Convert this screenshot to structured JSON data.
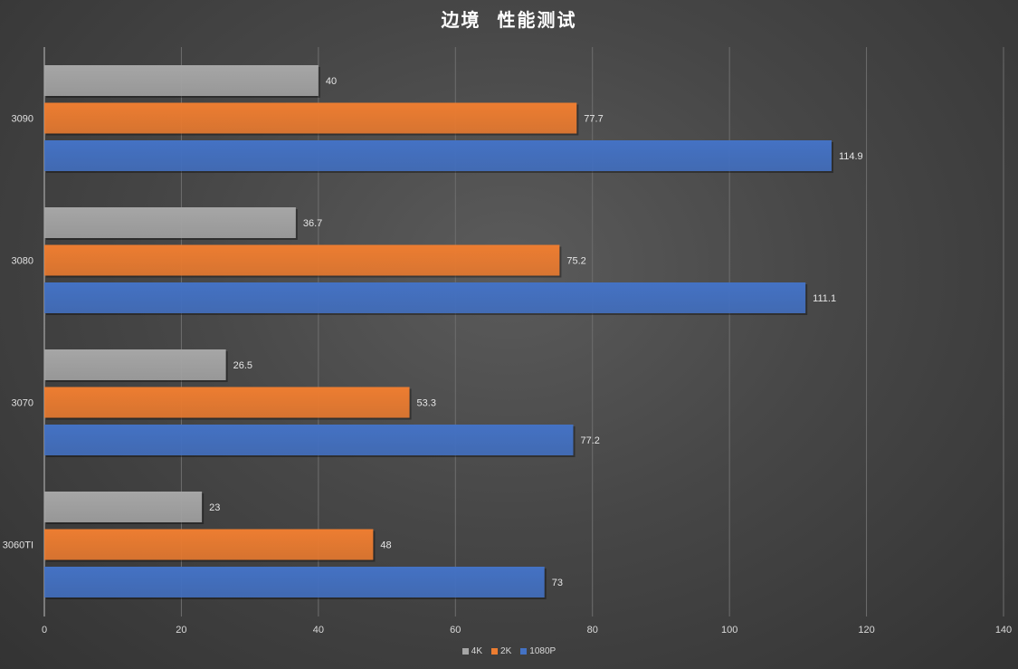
{
  "chart_data": {
    "type": "bar",
    "orientation": "horizontal",
    "title": "边境  性能测试",
    "categories": [
      "3090",
      "3080",
      "3070",
      "3060TI"
    ],
    "series": [
      {
        "name": "4K",
        "color": "#a6a6a6",
        "values": [
          40,
          36.7,
          26.5,
          23
        ]
      },
      {
        "name": "2K",
        "color": "#ed7d31",
        "values": [
          77.7,
          75.2,
          53.3,
          48
        ]
      },
      {
        "name": "1080P",
        "color": "#4472c4",
        "values": [
          114.9,
          111.1,
          77.2,
          73
        ]
      }
    ],
    "value_labels": [
      [
        "40",
        "77.7",
        "114.9"
      ],
      [
        "36.7",
        "75.2",
        "111.1"
      ],
      [
        "26.5",
        "53.3",
        "77.2"
      ],
      [
        "23",
        "48",
        "73"
      ]
    ],
    "xlim": [
      0,
      140
    ],
    "xticks": [
      "0",
      "20",
      "40",
      "60",
      "80",
      "100",
      "120",
      "140"
    ],
    "grid": true,
    "legend_position": "bottom"
  }
}
